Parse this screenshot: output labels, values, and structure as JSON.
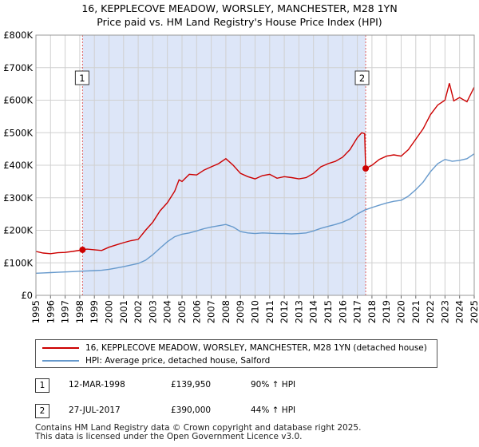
{
  "title_line1": "16, KEPPLECOVE MEADOW, WORSLEY, MANCHESTER, M28 1YN",
  "title_line2": "Price paid vs. HM Land Registry's House Price Index (HPI)",
  "colors": {
    "property": "#cc0000",
    "hpi": "#6699cc",
    "shade": "#dde6f8",
    "grid": "#d0d0d0",
    "marker_line": "#e06060"
  },
  "chart_data": {
    "type": "line",
    "xlim": [
      1995.0,
      2025.0
    ],
    "ylim": [
      0,
      800000
    ],
    "x_ticks": [
      "1995",
      "1996",
      "1997",
      "1998",
      "1999",
      "2000",
      "2001",
      "2002",
      "2003",
      "2004",
      "2005",
      "2006",
      "2007",
      "2008",
      "2009",
      "2010",
      "2011",
      "2012",
      "2013",
      "2014",
      "2015",
      "2016",
      "2017",
      "2018",
      "2019",
      "2020",
      "2021",
      "2022",
      "2023",
      "2024",
      "2025"
    ],
    "y_ticks": [
      {
        "value": 0,
        "label": "£0"
      },
      {
        "value": 100000,
        "label": "£100K"
      },
      {
        "value": 200000,
        "label": "£200K"
      },
      {
        "value": 300000,
        "label": "£300K"
      },
      {
        "value": 400000,
        "label": "£400K"
      },
      {
        "value": 500000,
        "label": "£500K"
      },
      {
        "value": 600000,
        "label": "£600K"
      },
      {
        "value": 700000,
        "label": "£700K"
      },
      {
        "value": 800000,
        "label": "£800K"
      }
    ],
    "shaded_region": [
      1998.19,
      2017.57
    ],
    "series": [
      {
        "name": "16, KEPPLECOVE MEADOW, WORSLEY, MANCHESTER, M28 1YN (detached house)",
        "color": "#cc0000",
        "points": [
          [
            1995.0,
            135000
          ],
          [
            1995.5,
            130000
          ],
          [
            1996.0,
            128000
          ],
          [
            1996.5,
            131000
          ],
          [
            1997.0,
            132000
          ],
          [
            1997.5,
            135000
          ],
          [
            1998.19,
            139950
          ],
          [
            1998.5,
            142000
          ],
          [
            1999.0,
            140000
          ],
          [
            1999.5,
            138000
          ],
          [
            2000.0,
            148000
          ],
          [
            2000.5,
            155000
          ],
          [
            2001.0,
            162000
          ],
          [
            2001.5,
            168000
          ],
          [
            2002.0,
            172000
          ],
          [
            2002.5,
            200000
          ],
          [
            2003.0,
            225000
          ],
          [
            2003.5,
            260000
          ],
          [
            2004.0,
            285000
          ],
          [
            2004.5,
            320000
          ],
          [
            2004.8,
            355000
          ],
          [
            2005.0,
            350000
          ],
          [
            2005.5,
            372000
          ],
          [
            2006.0,
            370000
          ],
          [
            2006.5,
            385000
          ],
          [
            2007.0,
            395000
          ],
          [
            2007.5,
            405000
          ],
          [
            2008.0,
            420000
          ],
          [
            2008.5,
            400000
          ],
          [
            2009.0,
            375000
          ],
          [
            2009.5,
            365000
          ],
          [
            2010.0,
            358000
          ],
          [
            2010.5,
            368000
          ],
          [
            2011.0,
            372000
          ],
          [
            2011.5,
            360000
          ],
          [
            2012.0,
            365000
          ],
          [
            2012.5,
            362000
          ],
          [
            2013.0,
            358000
          ],
          [
            2013.5,
            362000
          ],
          [
            2014.0,
            375000
          ],
          [
            2014.5,
            395000
          ],
          [
            2015.0,
            405000
          ],
          [
            2015.5,
            412000
          ],
          [
            2016.0,
            425000
          ],
          [
            2016.5,
            448000
          ],
          [
            2017.0,
            485000
          ],
          [
            2017.3,
            500000
          ],
          [
            2017.5,
            497000
          ],
          [
            2017.57,
            390000
          ],
          [
            2018.0,
            400000
          ],
          [
            2018.5,
            418000
          ],
          [
            2019.0,
            428000
          ],
          [
            2019.5,
            432000
          ],
          [
            2020.0,
            428000
          ],
          [
            2020.5,
            448000
          ],
          [
            2021.0,
            480000
          ],
          [
            2021.5,
            512000
          ],
          [
            2022.0,
            555000
          ],
          [
            2022.5,
            585000
          ],
          [
            2023.0,
            600000
          ],
          [
            2023.3,
            652000
          ],
          [
            2023.6,
            598000
          ],
          [
            2024.0,
            608000
          ],
          [
            2024.5,
            595000
          ],
          [
            2025.0,
            640000
          ]
        ]
      },
      {
        "name": "HPI: Average price, detached house, Salford",
        "color": "#6699cc",
        "points": [
          [
            1995.0,
            68000
          ],
          [
            1995.5,
            69000
          ],
          [
            1996.0,
            70000
          ],
          [
            1996.5,
            71000
          ],
          [
            1997.0,
            72000
          ],
          [
            1997.5,
            73000
          ],
          [
            1998.0,
            74000
          ],
          [
            1998.5,
            75000
          ],
          [
            1999.0,
            76000
          ],
          [
            1999.5,
            77000
          ],
          [
            2000.0,
            80000
          ],
          [
            2000.5,
            84000
          ],
          [
            2001.0,
            88000
          ],
          [
            2001.5,
            93000
          ],
          [
            2002.0,
            98000
          ],
          [
            2002.5,
            108000
          ],
          [
            2003.0,
            125000
          ],
          [
            2003.5,
            145000
          ],
          [
            2004.0,
            165000
          ],
          [
            2004.5,
            180000
          ],
          [
            2005.0,
            188000
          ],
          [
            2005.5,
            192000
          ],
          [
            2006.0,
            198000
          ],
          [
            2006.5,
            205000
          ],
          [
            2007.0,
            210000
          ],
          [
            2007.5,
            214000
          ],
          [
            2008.0,
            218000
          ],
          [
            2008.5,
            210000
          ],
          [
            2009.0,
            196000
          ],
          [
            2009.5,
            192000
          ],
          [
            2010.0,
            190000
          ],
          [
            2010.5,
            192000
          ],
          [
            2011.0,
            191000
          ],
          [
            2011.5,
            190000
          ],
          [
            2012.0,
            190000
          ],
          [
            2012.5,
            189000
          ],
          [
            2013.0,
            190000
          ],
          [
            2013.5,
            192000
          ],
          [
            2014.0,
            198000
          ],
          [
            2014.5,
            206000
          ],
          [
            2015.0,
            212000
          ],
          [
            2015.5,
            218000
          ],
          [
            2016.0,
            225000
          ],
          [
            2016.5,
            235000
          ],
          [
            2017.0,
            250000
          ],
          [
            2017.5,
            262000
          ],
          [
            2018.0,
            270000
          ],
          [
            2018.5,
            277000
          ],
          [
            2019.0,
            284000
          ],
          [
            2019.5,
            289000
          ],
          [
            2020.0,
            292000
          ],
          [
            2020.5,
            305000
          ],
          [
            2021.0,
            325000
          ],
          [
            2021.5,
            348000
          ],
          [
            2022.0,
            380000
          ],
          [
            2022.5,
            405000
          ],
          [
            2023.0,
            418000
          ],
          [
            2023.5,
            412000
          ],
          [
            2024.0,
            415000
          ],
          [
            2024.5,
            420000
          ],
          [
            2025.0,
            435000
          ]
        ]
      }
    ],
    "markers": [
      {
        "label": "1",
        "x": 1998.19,
        "y": 139950
      },
      {
        "label": "2",
        "x": 2017.57,
        "y": 390000
      }
    ]
  },
  "legend": {
    "property_label": "16, KEPPLECOVE MEADOW, WORSLEY, MANCHESTER, M28 1YN (detached house)",
    "hpi_label": "HPI: Average price, detached house, Salford"
  },
  "sales": [
    {
      "num": "1",
      "date": "12-MAR-1998",
      "price": "£139,950",
      "hpi": "90% ↑ HPI"
    },
    {
      "num": "2",
      "date": "27-JUL-2017",
      "price": "£390,000",
      "hpi": "44% ↑ HPI"
    }
  ],
  "footer_line1": "Contains HM Land Registry data © Crown copyright and database right 2025.",
  "footer_line2": "This data is licensed under the Open Government Licence v3.0."
}
